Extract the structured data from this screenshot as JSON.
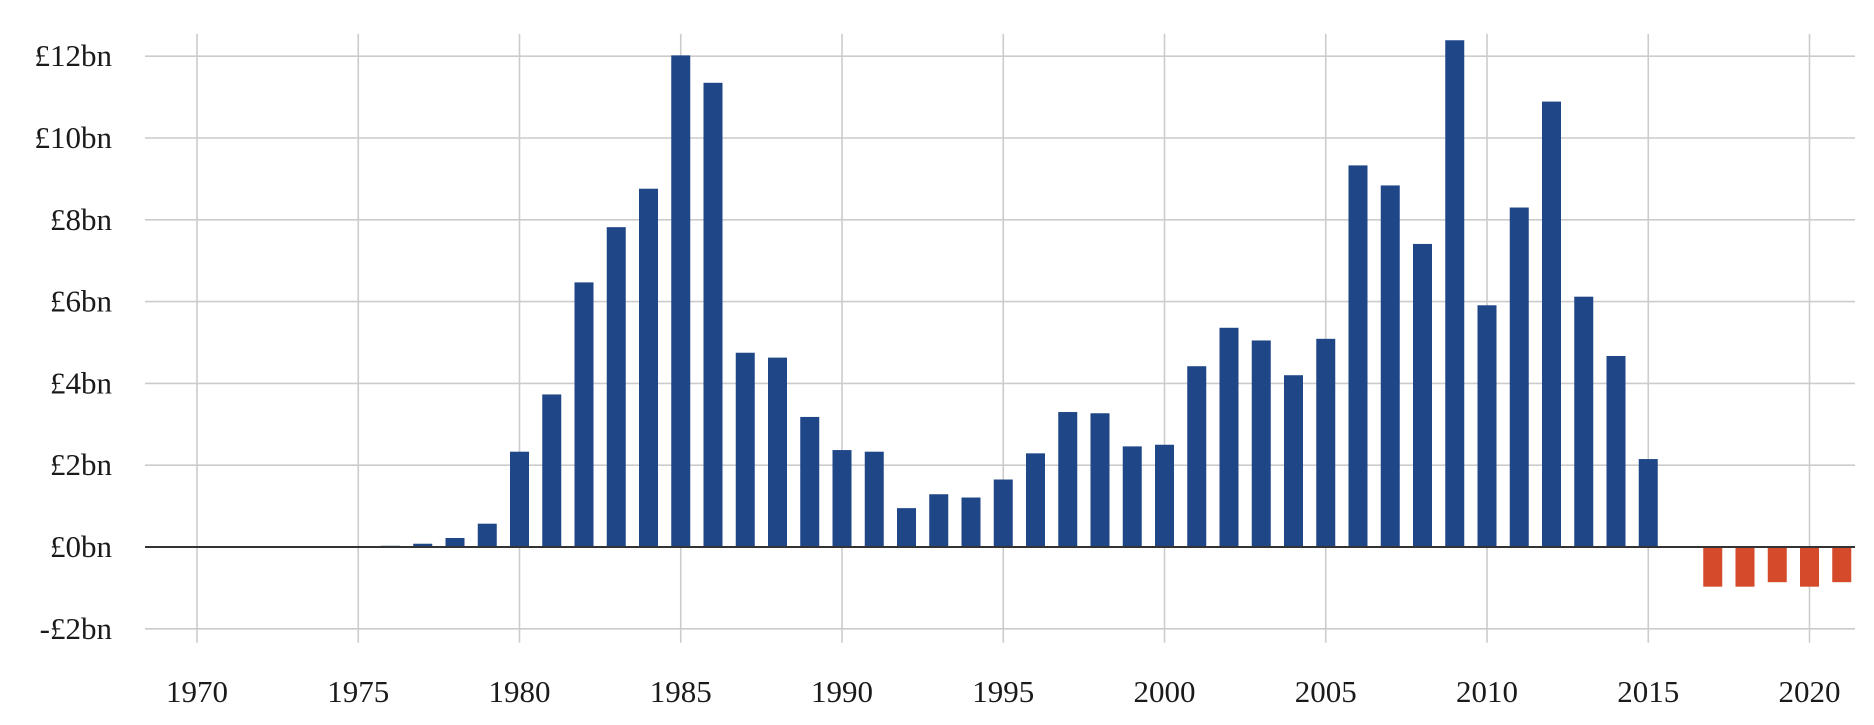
{
  "chart_data": {
    "type": "bar",
    "title": "",
    "xlabel": "",
    "ylabel": "",
    "x": [
      1970,
      1971,
      1972,
      1973,
      1974,
      1975,
      1976,
      1977,
      1978,
      1979,
      1980,
      1981,
      1982,
      1983,
      1984,
      1985,
      1986,
      1987,
      1988,
      1989,
      1990,
      1991,
      1992,
      1993,
      1994,
      1995,
      1996,
      1997,
      1998,
      1999,
      2000,
      2001,
      2002,
      2003,
      2004,
      2005,
      2006,
      2007,
      2008,
      2009,
      2010,
      2011,
      2012,
      2013,
      2014,
      2015,
      2016,
      2017,
      2018,
      2019,
      2020,
      2021
    ],
    "values": [
      0.0,
      0.0,
      0.0,
      0.0,
      0.0,
      0.02,
      0.03,
      0.08,
      0.22,
      0.57,
      2.33,
      3.73,
      6.47,
      7.82,
      8.76,
      12.02,
      11.35,
      4.75,
      4.63,
      3.18,
      2.37,
      2.33,
      0.95,
      1.29,
      1.21,
      1.65,
      2.29,
      3.3,
      3.27,
      2.46,
      2.5,
      4.42,
      5.36,
      5.05,
      4.2,
      5.09,
      9.33,
      8.84,
      7.41,
      12.39,
      5.91,
      8.3,
      10.89,
      6.12,
      4.67,
      2.15,
      0.0,
      -0.97,
      -0.97,
      -0.86,
      -0.97,
      -0.86
    ],
    "ylim": [
      -2,
      12.4
    ],
    "yticks": [
      -2,
      0,
      2,
      4,
      6,
      8,
      10,
      12
    ],
    "ytick_labels": [
      "-£2bn",
      "£0bn",
      "£2bn",
      "£4bn",
      "£6bn",
      "£8bn",
      "£10bn",
      "£12bn"
    ],
    "xticks": [
      1970,
      1975,
      1980,
      1985,
      1990,
      1995,
      2000,
      2005,
      2010,
      2015,
      2020
    ],
    "xtick_labels": [
      "1970",
      "1975",
      "1980",
      "1985",
      "1990",
      "1995",
      "2000",
      "2005",
      "2010",
      "2015",
      "2020"
    ],
    "grid": true,
    "legend": "none",
    "colors": {
      "positive": "#1f4687",
      "negative": "#d44a2a",
      "grid": "#cccccc",
      "zero_line": "#333333"
    }
  }
}
